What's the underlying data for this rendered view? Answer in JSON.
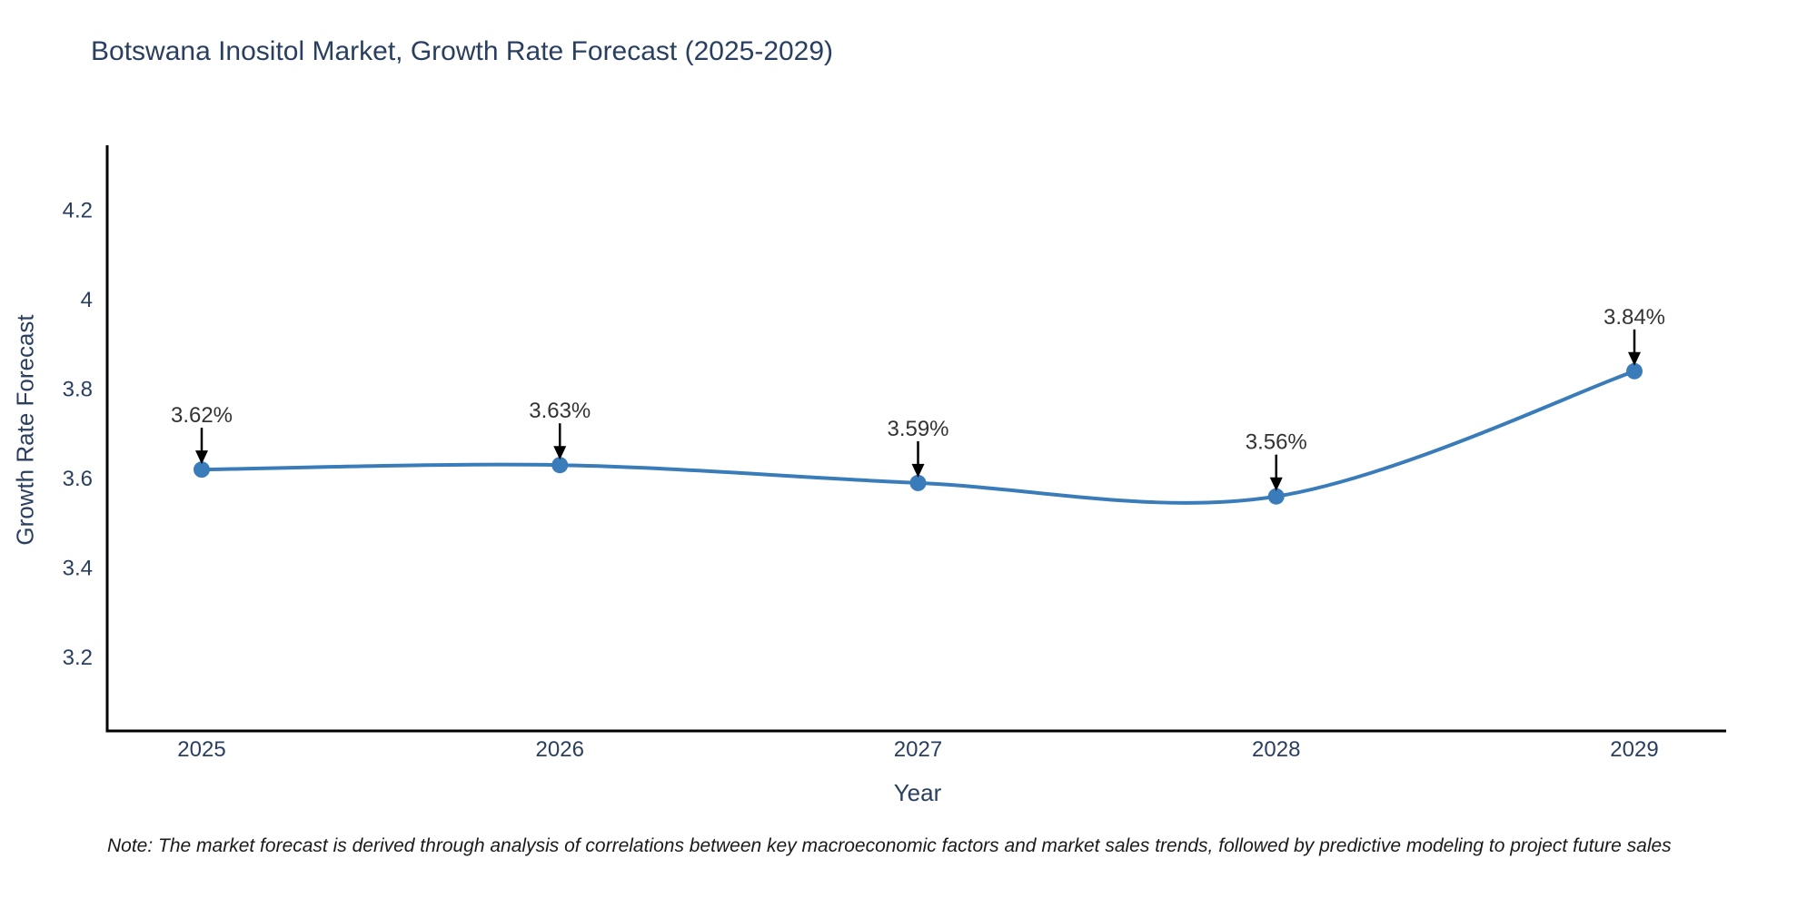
{
  "title": "Botswana Inositol Market, Growth Rate Forecast (2025-2029)",
  "note": "Note: The market forecast is derived through analysis of correlations between key macroeconomic factors and market sales trends, followed by predictive modeling to project future sales",
  "chart_data": {
    "type": "line",
    "title": "Botswana Inositol Market, Growth Rate Forecast (2025-2029)",
    "x": [
      2025,
      2026,
      2027,
      2028,
      2029
    ],
    "series": [
      {
        "name": "Growth Rate Forecast",
        "values": [
          3.62,
          3.63,
          3.59,
          3.56,
          3.84
        ]
      }
    ],
    "point_labels": [
      "3.62%",
      "3.63%",
      "3.59%",
      "3.56%",
      "3.84%"
    ],
    "xlabel": "Year",
    "ylabel": "Growth Rate Forecast",
    "yticks": [
      3.2,
      3.4,
      3.6,
      3.8,
      4,
      4.2
    ],
    "ylim": [
      3.04,
      4.35
    ],
    "line_shape": "spline",
    "grid": false,
    "legend": "none",
    "colors": {
      "line": "#3a7cba",
      "marker": "#3a7cba",
      "axis": "#000000",
      "tick_text": "#2a3f5f",
      "annotation_text": "#333333",
      "arrow": "#000000"
    }
  }
}
